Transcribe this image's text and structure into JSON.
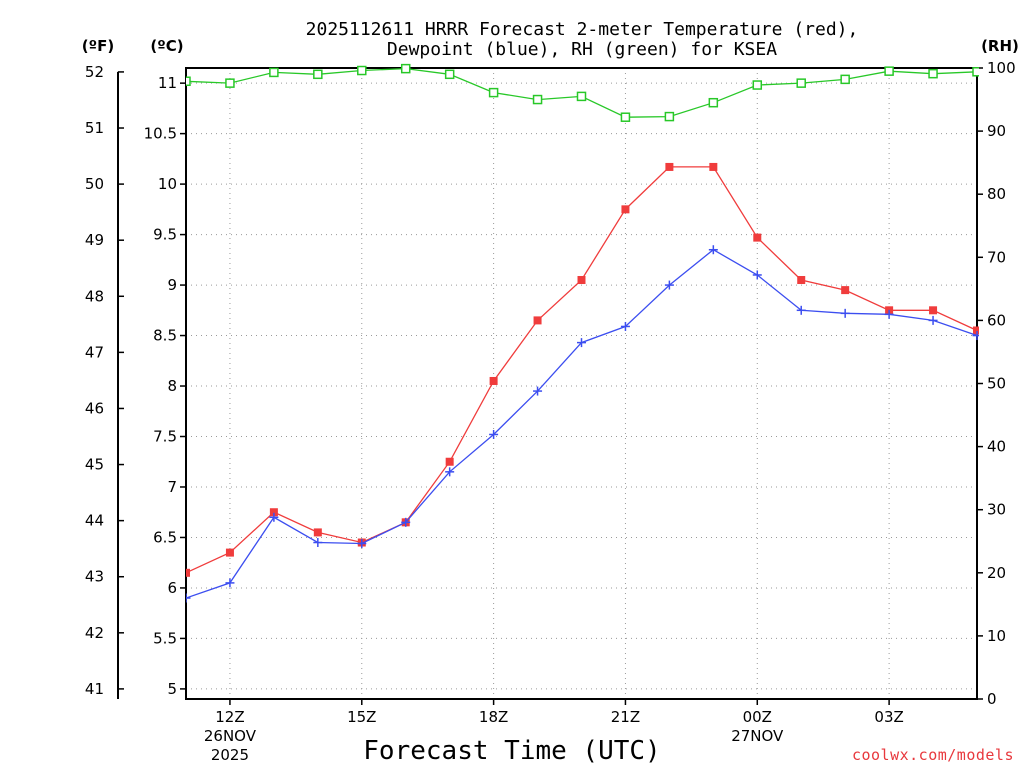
{
  "chart_data": {
    "type": "line",
    "title_line1": "2025112611 HRRR Forecast 2-meter Temperature (red),",
    "title_line2": "Dewpoint (blue), RH (green) for KSEA",
    "xlabel": "Forecast Time (UTC)",
    "credit": "coolwx.com/models",
    "units": {
      "fahrenheit": "(ºF)",
      "celsius": "(ºC)",
      "rh": "(RH)"
    },
    "x_range": [
      11,
      29
    ],
    "y_celsius_range": [
      4.9,
      11.15
    ],
    "y_rh_range": [
      0,
      100
    ],
    "y_celsius_ticks": [
      "5",
      "5.5",
      "6",
      "6.5",
      "7",
      "7.5",
      "8",
      "8.5",
      "9",
      "9.5",
      "10",
      "10.5",
      "11"
    ],
    "y_fahrenheit_ticks": [
      "41",
      "42",
      "43",
      "44",
      "45",
      "46",
      "47",
      "48",
      "49",
      "50",
      "51",
      "52"
    ],
    "y_rh_ticks": [
      "0",
      "10",
      "20",
      "30",
      "40",
      "50",
      "60",
      "70",
      "80",
      "90",
      "100"
    ],
    "x_ticks": [
      {
        "x": 12,
        "label": "12Z",
        "sub1": "26NOV",
        "sub2": "2025"
      },
      {
        "x": 15,
        "label": "15Z",
        "sub1": "",
        "sub2": ""
      },
      {
        "x": 18,
        "label": "18Z",
        "sub1": "",
        "sub2": ""
      },
      {
        "x": 21,
        "label": "21Z",
        "sub1": "",
        "sub2": ""
      },
      {
        "x": 24,
        "label": "00Z",
        "sub1": "27NOV",
        "sub2": ""
      },
      {
        "x": 27,
        "label": "03Z",
        "sub1": "",
        "sub2": ""
      }
    ],
    "x": [
      11,
      12,
      13,
      14,
      15,
      16,
      17,
      18,
      19,
      20,
      21,
      22,
      23,
      24,
      25,
      26,
      27,
      28,
      29
    ],
    "series": [
      {
        "name": "Temperature",
        "color": "#f03c3c",
        "marker": "filled-square",
        "axis": "celsius",
        "values": [
          6.15,
          6.35,
          6.75,
          6.55,
          6.45,
          6.65,
          7.25,
          8.05,
          8.65,
          9.05,
          9.75,
          10.17,
          10.17,
          9.47,
          9.05,
          8.95,
          8.75,
          8.75,
          8.55
        ]
      },
      {
        "name": "Dewpoint",
        "color": "#3c4ef0",
        "marker": "plus",
        "axis": "celsius",
        "values": [
          5.9,
          6.05,
          6.7,
          6.45,
          6.44,
          6.65,
          7.15,
          7.52,
          7.95,
          8.43,
          8.59,
          9.0,
          9.35,
          9.1,
          8.75,
          8.72,
          8.71,
          8.65,
          8.5
        ]
      },
      {
        "name": "RH",
        "color": "#28c828",
        "marker": "open-square",
        "axis": "rh",
        "values": [
          97.9,
          97.6,
          99.3,
          99.0,
          99.6,
          99.9,
          99.0,
          96.1,
          95.0,
          95.5,
          92.2,
          92.3,
          94.5,
          97.3,
          97.6,
          98.2,
          99.5,
          99.1,
          99.4
        ]
      }
    ]
  }
}
